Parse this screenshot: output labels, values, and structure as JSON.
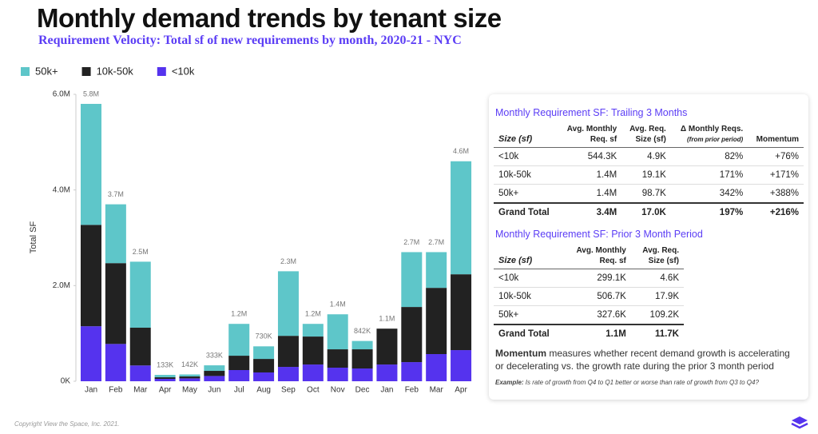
{
  "chart_data": {
    "type": "stacked_bar",
    "title": "Monthly demand trends by tenant size",
    "subtitle": "Requirement Velocity: Total sf of new requirements by month, 2020-21 - NYC",
    "y_label": "Total SF",
    "categories": [
      "Jan",
      "Feb",
      "Mar",
      "Apr",
      "May",
      "Jun",
      "Jul",
      "Aug",
      "Sep",
      "Oct",
      "Nov",
      "Dec",
      "Jan",
      "Feb",
      "Mar",
      "Apr"
    ],
    "series": [
      {
        "name": "<10k",
        "color": "#5533ee",
        "values": [
          1150000,
          780000,
          330000,
          50000,
          60000,
          110000,
          234000,
          184000,
          300000,
          350000,
          284000,
          267000,
          350000,
          400000,
          568000,
          651000
        ]
      },
      {
        "name": "10k-50k",
        "color": "#222222",
        "values": [
          2120000,
          1690000,
          790000,
          33000,
          40000,
          107000,
          300000,
          283000,
          650000,
          585000,
          384000,
          401000,
          750000,
          1153000,
          1385000,
          1586000
        ]
      },
      {
        "name": "50k+",
        "color": "#5ec6c9",
        "values": [
          2530000,
          1230000,
          1380000,
          50000,
          42000,
          116000,
          666000,
          263000,
          1350000,
          265000,
          732000,
          174000,
          0,
          1147000,
          747000,
          2363000
        ]
      }
    ],
    "legend_order": [
      2,
      1,
      0
    ],
    "totals": {
      "values": [
        5800000,
        3700000,
        2500000,
        133000,
        142000,
        333000,
        1200000,
        730000,
        2300000,
        1200000,
        1400000,
        842000,
        1100000,
        2700000,
        2700000,
        4600000
      ],
      "value_labels": [
        "5.8M",
        "3.7M",
        "2.5M",
        "133K",
        "142K",
        "333K",
        "1.2M",
        "730K",
        "2.3M",
        "1.2M",
        "1.4M",
        "842K",
        "1.1M",
        "2.7M",
        "2.7M",
        "4.6M"
      ]
    },
    "ylim": [
      0,
      6000000
    ],
    "yticks": [
      {
        "value": 0,
        "label": "0K"
      },
      {
        "value": 2000000,
        "label": "2.0M"
      },
      {
        "value": 4000000,
        "label": "4.0M"
      },
      {
        "value": 6000000,
        "label": "6.0M"
      }
    ],
    "grid": false
  },
  "panel": {
    "table1": {
      "title": "Monthly Requirement SF: Trailing 3 Months",
      "headers": [
        [
          "Size (sf)"
        ],
        [
          "Avg. Monthly",
          "Req. sf"
        ],
        [
          "Avg. Req.",
          "Size (sf)"
        ],
        [
          "Δ Monthly Reqs.",
          "(from prior period)"
        ],
        [
          "Momentum"
        ]
      ],
      "rows": [
        [
          "<10k",
          "544.3K",
          "4.9K",
          "82%",
          "+76%"
        ],
        [
          "10k-50k",
          "1.4M",
          "19.1K",
          "171%",
          "+171%"
        ],
        [
          "50k+",
          "1.4M",
          "98.7K",
          "342%",
          "+388%"
        ]
      ],
      "total": [
        "Grand Total",
        "3.4M",
        "17.0K",
        "197%",
        "+216%"
      ]
    },
    "table2": {
      "title": "Monthly Requirement SF: Prior 3 Month Period",
      "headers": [
        [
          "Size (sf)"
        ],
        [
          "Avg. Monthly",
          "Req. sf"
        ],
        [
          "Avg. Req.",
          "Size (sf)"
        ]
      ],
      "rows": [
        [
          "<10k",
          "299.1K",
          "4.6K"
        ],
        [
          "10k-50k",
          "506.7K",
          "17.9K"
        ],
        [
          "50k+",
          "327.6K",
          "109.2K"
        ]
      ],
      "total": [
        "Grand Total",
        "1.1M",
        "11.7K"
      ]
    },
    "note_bold": "Momentum",
    "note": " measures whether recent demand growth is accelerating or decelerating vs. the growth rate during the prior 3 month period",
    "example_label": "Example:",
    "example": " Is rate of growth from Q4 to Q1 better or worse than rate of growth from Q3 to Q4?"
  },
  "copyright": "Copyright View the Space, Inc. 2021."
}
